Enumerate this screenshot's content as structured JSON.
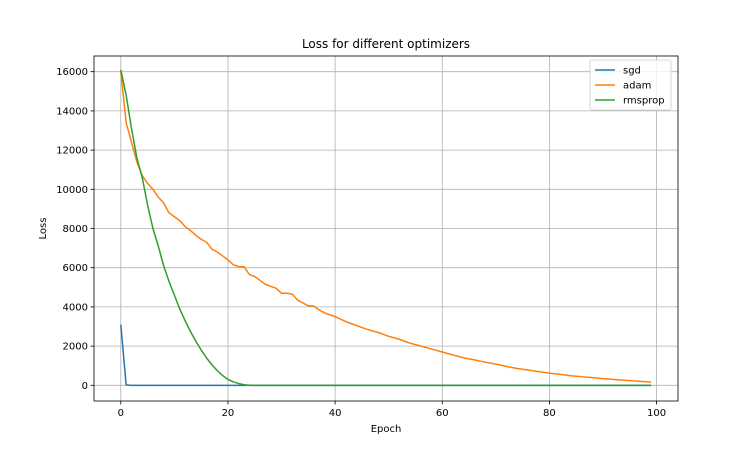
{
  "chart_data": {
    "type": "line",
    "title": "Loss for different optimizers",
    "xlabel": "Epoch",
    "ylabel": "Loss",
    "xlim": [
      -5,
      104
    ],
    "ylim": [
      -800,
      16800
    ],
    "xticks": [
      0,
      20,
      40,
      60,
      80,
      100
    ],
    "yticks": [
      0,
      2000,
      4000,
      6000,
      8000,
      10000,
      12000,
      14000,
      16000
    ],
    "grid": true,
    "legend_position": "top-right",
    "series": [
      {
        "name": "sgd",
        "color": "#1f77b4",
        "x": [
          0,
          1,
          2,
          3,
          5,
          10,
          15,
          20,
          25,
          30,
          40,
          50,
          60,
          70,
          80,
          90,
          99
        ],
        "values": [
          3100,
          20,
          0,
          0,
          0,
          0,
          0,
          0,
          0,
          0,
          0,
          0,
          0,
          0,
          0,
          0,
          0
        ]
      },
      {
        "name": "adam",
        "color": "#ff7f0e",
        "x": [
          0,
          1,
          2,
          3,
          4,
          5,
          6,
          7,
          8,
          9,
          10,
          11,
          12,
          13,
          14,
          15,
          16,
          17,
          18,
          19,
          20,
          21,
          22,
          23,
          24,
          25,
          26,
          27,
          28,
          29,
          30,
          31,
          32,
          33,
          34,
          35,
          36,
          37,
          38,
          39,
          40,
          42,
          44,
          46,
          48,
          50,
          52,
          54,
          56,
          58,
          60,
          62,
          64,
          66,
          68,
          70,
          72,
          74,
          76,
          78,
          80,
          82,
          84,
          86,
          88,
          90,
          92,
          94,
          96,
          98,
          99
        ],
        "values": [
          16000,
          13400,
          12400,
          11400,
          10700,
          10300,
          10000,
          9600,
          9300,
          8800,
          8600,
          8400,
          8100,
          7900,
          7650,
          7450,
          7300,
          6950,
          6800,
          6600,
          6400,
          6150,
          6050,
          6050,
          5650,
          5550,
          5350,
          5150,
          5050,
          4950,
          4700,
          4700,
          4650,
          4350,
          4200,
          4050,
          4050,
          3850,
          3700,
          3600,
          3500,
          3250,
          3050,
          2850,
          2700,
          2500,
          2350,
          2150,
          2000,
          1850,
          1700,
          1550,
          1400,
          1300,
          1180,
          1080,
          960,
          860,
          780,
          700,
          620,
          560,
          490,
          440,
          390,
          340,
          300,
          260,
          220,
          180,
          160
        ]
      },
      {
        "name": "rmsprop",
        "color": "#2ca02c",
        "x": [
          0,
          1,
          2,
          3,
          4,
          5,
          6,
          7,
          8,
          9,
          10,
          11,
          12,
          13,
          14,
          15,
          16,
          17,
          18,
          19,
          20,
          21,
          22,
          23,
          24,
          25,
          30,
          40,
          50,
          60,
          70,
          80,
          90,
          99
        ],
        "values": [
          16100,
          14800,
          13100,
          11600,
          10600,
          9200,
          8000,
          7100,
          6100,
          5300,
          4600,
          3900,
          3300,
          2750,
          2250,
          1800,
          1400,
          1050,
          750,
          500,
          300,
          180,
          90,
          30,
          5,
          0,
          0,
          0,
          0,
          0,
          0,
          0,
          0,
          0
        ]
      }
    ]
  }
}
